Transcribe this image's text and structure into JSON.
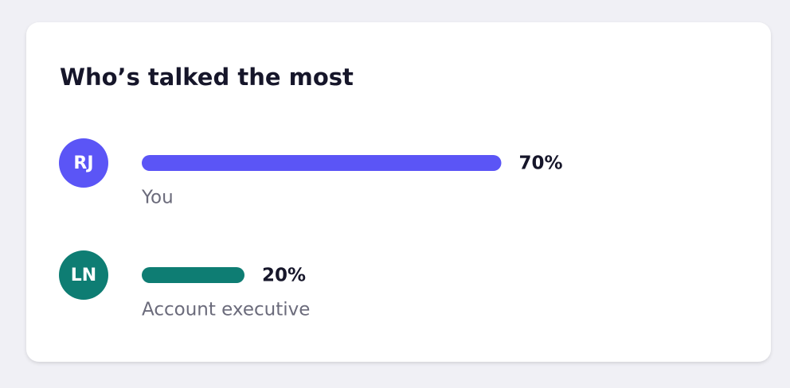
{
  "chart_data": {
    "type": "bar",
    "title": "Who’s talked the most",
    "categories": [
      "You",
      "Account executive"
    ],
    "initials": [
      "RJ",
      "LN"
    ],
    "values": [
      70,
      20
    ],
    "value_labels": [
      "70%",
      "20%"
    ],
    "colors": [
      "#5b55f6",
      "#0e7d73"
    ]
  }
}
